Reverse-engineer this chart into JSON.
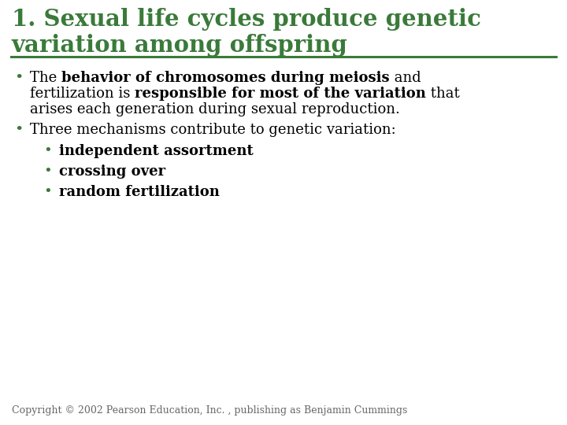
{
  "bg_color": "#ffffff",
  "title_color": "#3a7a3a",
  "title_line1": "1. Sexual life cycles produce genetic",
  "title_line2": "variation among offspring",
  "separator_color": "#3a7a3a",
  "bullet_color": "#3a7a3a",
  "text_color": "#000000",
  "bullet2_text": "Three mechanisms contribute to genetic variation:",
  "sub_bullets": [
    "independent assortment",
    "crossing over",
    "random fertilization"
  ],
  "copyright": "Copyright © 2002 Pearson Education, Inc. , publishing as Benjamin Cummings",
  "title_fontsize": 21,
  "body_fontsize": 13,
  "sub_fontsize": 13,
  "copyright_fontsize": 9,
  "title_font": "DejaVu Serif",
  "body_font": "DejaVu Serif"
}
